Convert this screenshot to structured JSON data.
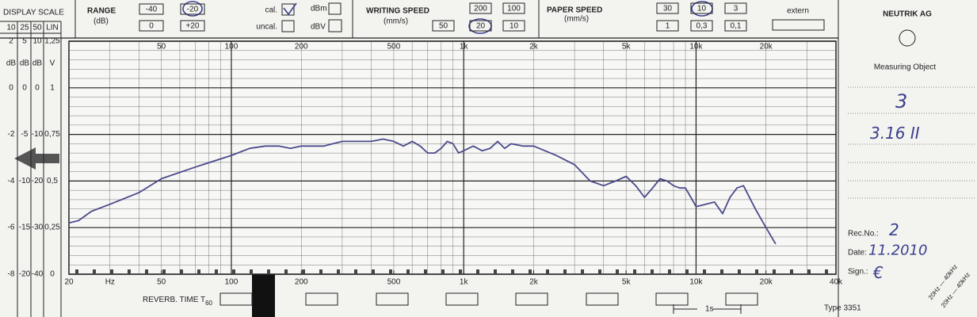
{
  "chart_data": {
    "type": "line",
    "x_unit": "Hz",
    "log_x": true,
    "grid": true,
    "xlim": [
      20,
      40000
    ],
    "xticks": [
      20,
      50,
      100,
      200,
      500,
      {
        "value": 1000,
        "label": "1k"
      },
      {
        "value": 2000,
        "label": "2k"
      },
      {
        "value": 5000,
        "label": "5k"
      },
      {
        "value": 10000,
        "label": "10k"
      },
      {
        "value": 20000,
        "label": "20k"
      },
      {
        "value": 40000,
        "label": "40k"
      }
    ],
    "ylim": [
      -8,
      2
    ],
    "yticks": [
      2,
      0,
      -2,
      -4,
      -6,
      -8
    ],
    "series": [
      {
        "color": "#4a4a8c",
        "x": [
          20,
          22,
          25,
          30,
          40,
          50,
          70,
          100,
          120,
          140,
          160,
          180,
          200,
          250,
          300,
          400,
          450,
          500,
          550,
          600,
          650,
          700,
          750,
          800,
          850,
          900,
          950,
          1000,
          1100,
          1200,
          1300,
          1400,
          1500,
          1600,
          1800,
          2000,
          2500,
          3000,
          3500,
          4000,
          4500,
          5000,
          5500,
          6000,
          6500,
          7000,
          7500,
          8000,
          8500,
          9000,
          9500,
          10000,
          11000,
          12000,
          13000,
          14000,
          15000,
          16000,
          18000,
          20000,
          22000
        ],
        "values": [
          -5.8,
          -5.7,
          -5.3,
          -5.0,
          -4.5,
          -3.9,
          -3.4,
          -2.9,
          -2.6,
          -2.5,
          -2.5,
          -2.6,
          -2.5,
          -2.5,
          -2.3,
          -2.3,
          -2.2,
          -2.3,
          -2.5,
          -2.3,
          -2.5,
          -2.8,
          -2.8,
          -2.6,
          -2.3,
          -2.4,
          -2.8,
          -2.7,
          -2.5,
          -2.7,
          -2.6,
          -2.3,
          -2.6,
          -2.4,
          -2.5,
          -2.5,
          -2.9,
          -3.3,
          -4.0,
          -4.2,
          -4.0,
          -3.8,
          -4.2,
          -4.7,
          -4.3,
          -3.9,
          -4.0,
          -4.2,
          -4.3,
          -4.3,
          -4.7,
          -5.1,
          -5.0,
          -4.9,
          -5.4,
          -4.7,
          -4.3,
          -4.2,
          -5.2,
          -6.0,
          -6.7
        ]
      }
    ]
  },
  "display_scale": {
    "title": "DISPLAY SCALE",
    "columns": [
      {
        "header": "10",
        "unit": "dB"
      },
      {
        "header": "25",
        "unit": "dB",
        "labels": [
          "5",
          "0",
          "-5",
          "-10",
          "-15",
          "-20"
        ]
      },
      {
        "header": "50",
        "unit": "dB",
        "labels": [
          "10",
          "0",
          "-10",
          "-20",
          "-30",
          "-40"
        ]
      },
      {
        "header": "LIN",
        "unit": "V",
        "labels": [
          "1,25",
          "1",
          "0,75",
          "0,5",
          "0,25",
          "0"
        ]
      }
    ]
  },
  "range": {
    "title": "RANGE",
    "unit": "(dB)",
    "buttons": [
      "-40",
      "-20",
      "0",
      "+20"
    ]
  },
  "calibration": [
    "cal.",
    "dBm",
    "uncal.",
    "dBV"
  ],
  "writing_speed": {
    "title": "WRITING SPEED",
    "unit": "(mm/s)",
    "buttons": [
      "200",
      "100",
      "50",
      "20",
      "10"
    ]
  },
  "paper_speed": {
    "title": "PAPER SPEED",
    "unit": "(mm/s)",
    "buttons": [
      "30",
      "10",
      "3",
      "1",
      "0,3",
      "0,1"
    ]
  },
  "extern": "extern",
  "brand": "NEUTRIK AG",
  "measuring_object": {
    "label": "Measuring Object",
    "entries": [
      "3",
      "3.16 II"
    ]
  },
  "record": {
    "rec_no_label": "Rec.No.:",
    "rec_no": "2",
    "date_label": "Date:",
    "date": "11.2010",
    "sign_label": "Sign.:",
    "sign": "€"
  },
  "reverb": {
    "label": "REVERB. TIME T",
    "subscript": "60"
  },
  "time_marker": "1s",
  "model": "Type 3351",
  "filter_labels": [
    "20Hz — 40kHz",
    "20Hz — 40kHz"
  ]
}
